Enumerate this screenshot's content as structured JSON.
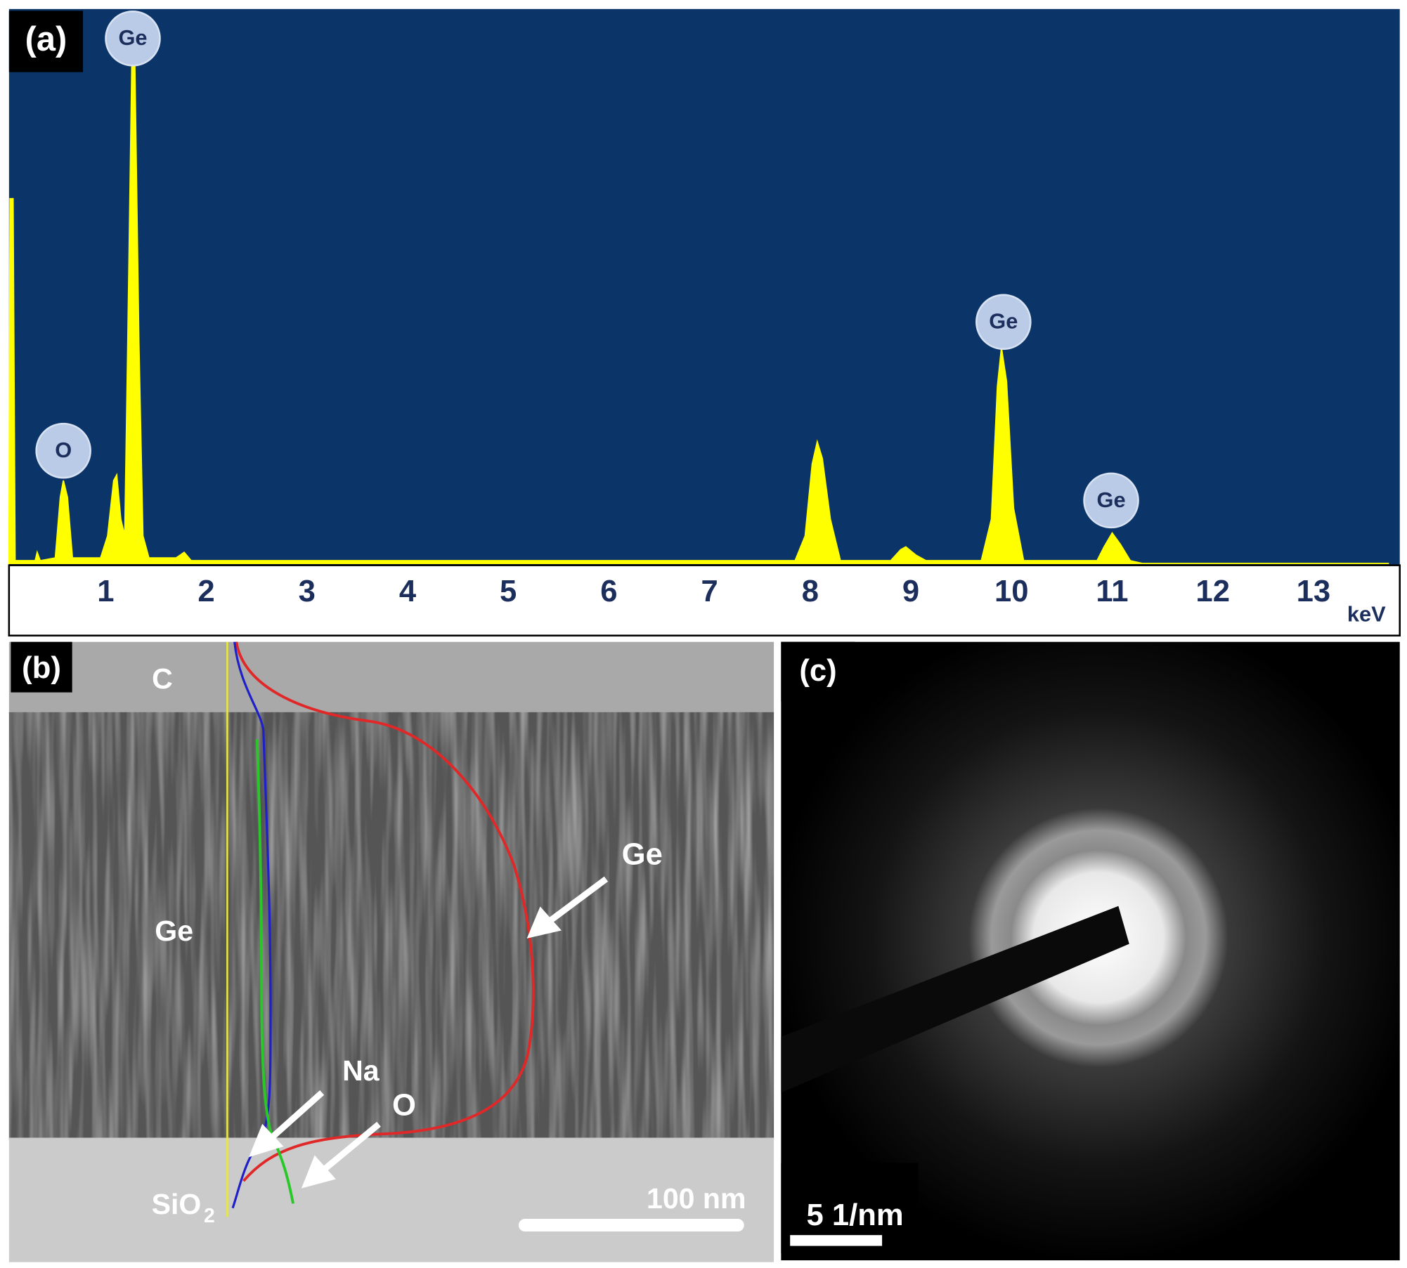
{
  "chart_data": {
    "type": "area",
    "panel_label": "(a)",
    "x_unit": "keV",
    "xlim": [
      0.04,
      13.75
    ],
    "ylim": [
      0,
      100
    ],
    "xticks": [
      1,
      2,
      3,
      4,
      5,
      6,
      7,
      8,
      9,
      10,
      11,
      12,
      13
    ],
    "background": "#0b3468",
    "series": [
      {
        "color": "#ffff00",
        "x": [
          0.04,
          0.05,
          0.08,
          0.1,
          0.3,
          0.32,
          0.35,
          0.5,
          0.55,
          0.58,
          0.62,
          0.67,
          0.95,
          1.02,
          1.08,
          1.11,
          1.15,
          1.19,
          1.22,
          1.26,
          1.29,
          1.33,
          1.37,
          1.43,
          1.7,
          1.78,
          1.85,
          7.85,
          7.95,
          8.02,
          8.07,
          8.12,
          8.2,
          8.3,
          8.8,
          8.9,
          8.95,
          9.05,
          9.15,
          9.7,
          9.8,
          9.86,
          9.9,
          9.95,
          10.02,
          10.12,
          10.85,
          10.92,
          11.0,
          11.08,
          11.18,
          11.3,
          13.75
        ],
        "values": [
          0,
          66,
          66,
          0.5,
          0.5,
          2,
          0.5,
          1,
          12,
          15,
          12,
          1,
          1,
          5,
          15,
          16,
          8,
          5,
          40,
          90,
          90,
          40,
          5,
          1,
          1,
          2,
          0.5,
          0.5,
          5,
          18,
          22,
          19,
          8,
          0.5,
          0.5,
          2.5,
          3,
          1.5,
          0.5,
          0.5,
          8,
          32,
          39,
          33,
          10,
          0.5,
          0.5,
          3,
          5.5,
          3.5,
          0.5,
          0,
          0
        ]
      }
    ],
    "annotations": [
      {
        "text": "O",
        "x": 0.58,
        "y": 20.4
      },
      {
        "text": "Ge",
        "x": 1.27,
        "y": 95
      },
      {
        "text": "Ge",
        "x": 9.92,
        "y": 43.7
      },
      {
        "text": "Ge",
        "x": 10.99,
        "y": 11.4
      }
    ]
  },
  "panels": {
    "b": {
      "label": "(b)",
      "layer_top": "C",
      "layer_mid": "Ge",
      "layer_bottom": "SiO",
      "layer_bottom_sub": "2",
      "curve_ge": "Ge",
      "curve_na": "Na",
      "curve_o": "O",
      "scale_bar": "100 nm"
    },
    "c": {
      "label": "(c)",
      "scale_bar": "5 1/nm"
    }
  }
}
